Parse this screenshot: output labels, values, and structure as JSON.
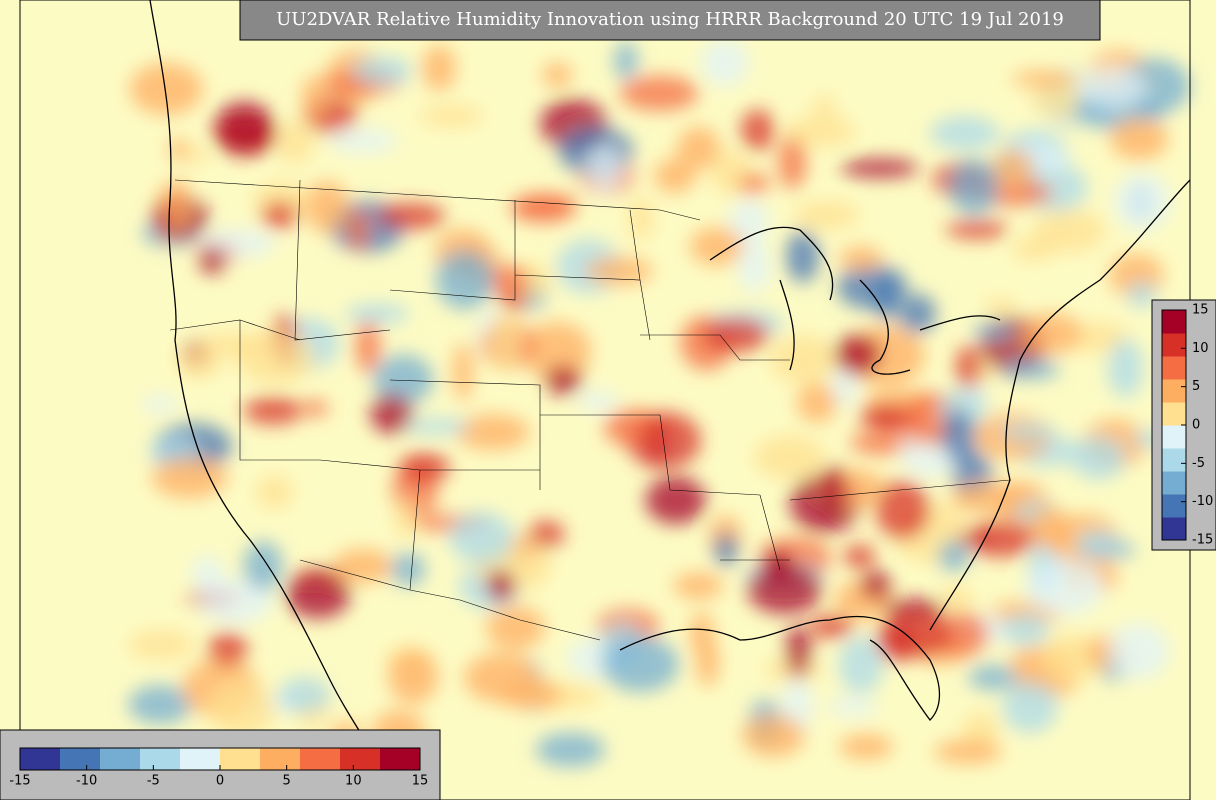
{
  "title": "UU2DVAR Relative Humidity Innovation using HRRR Background 20 UTC 19 Jul 2019",
  "colorbars": [
    {
      "orientation": "horizontal",
      "range": [
        -15,
        15
      ],
      "ticks": [
        -15,
        -10,
        -5,
        0,
        5,
        10,
        15
      ]
    },
    {
      "orientation": "vertical",
      "range": [
        -15,
        15
      ],
      "ticks": [
        -15,
        -10,
        -5,
        0,
        5,
        10,
        15
      ]
    }
  ]
}
